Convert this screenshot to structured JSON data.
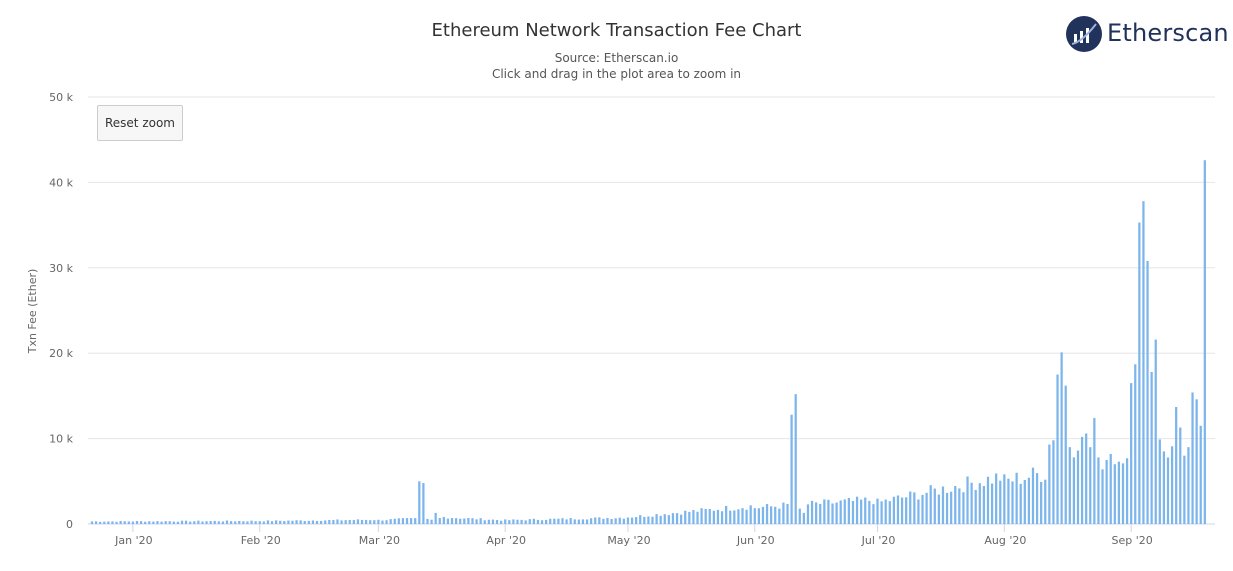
{
  "title": "Ethereum Network Transaction Fee Chart",
  "subtitle_source": "Source: Etherscan.io",
  "subtitle_hint": "Click and drag in the plot area to zoom in",
  "brand": {
    "name": "Etherscan",
    "icon": "etherscan-logo-icon"
  },
  "reset_zoom_label": "Reset zoom",
  "colors": {
    "bar": "#7cb5ec",
    "grid": "#e6e6e6",
    "brand": "#21325b"
  },
  "chart_data": {
    "type": "bar",
    "title": "Ethereum Network Transaction Fee Chart",
    "ylabel": "Txn Fee (Ether)",
    "xlabel": "",
    "ylim": [
      0,
      50000
    ],
    "yticks": [
      0,
      10000,
      20000,
      30000,
      40000,
      50000
    ],
    "ytick_labels": [
      "0",
      "10 k",
      "20 k",
      "30 k",
      "40 k",
      "50 k"
    ],
    "xtick_labels": [
      "Jan '20",
      "Feb '20",
      "Mar '20",
      "Apr '20",
      "May '20",
      "Jun '20",
      "Jul '20",
      "Aug '20",
      "Sep '20"
    ],
    "x_start": "2019-12-22",
    "x_end": "2020-09-17",
    "grid": true,
    "series": [
      {
        "segments": [
          {
            "from": "2019-12-22",
            "to": "2020-01-31",
            "start": 300,
            "end": 350
          },
          {
            "from": "2020-02-01",
            "to": "2020-02-29",
            "start": 350,
            "end": 500
          },
          {
            "from": "2020-03-01",
            "to": "2020-03-10",
            "start": 450,
            "end": 650
          },
          {
            "date": "2020-03-11",
            "value": 5000
          },
          {
            "date": "2020-03-12",
            "value": 4800
          },
          {
            "date": "2020-03-13",
            "value": 600
          },
          {
            "date": "2020-03-14",
            "value": 500
          },
          {
            "date": "2020-03-15",
            "value": 1300
          },
          {
            "date": "2020-03-16",
            "value": 700
          },
          {
            "from": "2020-03-17",
            "to": "2020-03-31",
            "start": 800,
            "end": 450
          },
          {
            "from": "2020-04-01",
            "to": "2020-04-30",
            "start": 450,
            "end": 750
          },
          {
            "from": "2020-05-01",
            "to": "2020-05-31",
            "start": 800,
            "end": 2100
          },
          {
            "from": "2020-06-01",
            "to": "2020-06-09",
            "start": 1900,
            "end": 2200
          },
          {
            "date": "2020-06-10",
            "value": 12800
          },
          {
            "date": "2020-06-11",
            "value": 15200
          },
          {
            "date": "2020-06-12",
            "value": 1800
          },
          {
            "date": "2020-06-13",
            "value": 1300
          },
          {
            "from": "2020-06-14",
            "to": "2020-06-30",
            "start": 2300,
            "end": 2800
          },
          {
            "from": "2020-07-01",
            "to": "2020-07-31",
            "start": 2500,
            "end": 5500
          },
          {
            "from": "2020-08-01",
            "to": "2020-08-11",
            "start": 5000,
            "end": 6000
          },
          {
            "date": "2020-08-12",
            "value": 9300
          },
          {
            "date": "2020-08-13",
            "value": 9800
          },
          {
            "date": "2020-08-14",
            "value": 17500
          },
          {
            "date": "2020-08-15",
            "value": 20100
          },
          {
            "date": "2020-08-16",
            "value": 16200
          },
          {
            "date": "2020-08-17",
            "value": 9000
          },
          {
            "date": "2020-08-18",
            "value": 7800
          },
          {
            "date": "2020-08-19",
            "value": 8600
          },
          {
            "date": "2020-08-20",
            "value": 10200
          },
          {
            "date": "2020-08-21",
            "value": 10600
          },
          {
            "date": "2020-08-22",
            "value": 9000
          },
          {
            "date": "2020-08-23",
            "value": 12400
          },
          {
            "date": "2020-08-24",
            "value": 7800
          },
          {
            "date": "2020-08-25",
            "value": 6400
          },
          {
            "date": "2020-08-26",
            "value": 7500
          },
          {
            "date": "2020-08-27",
            "value": 8200
          },
          {
            "date": "2020-08-28",
            "value": 7000
          },
          {
            "date": "2020-08-29",
            "value": 7300
          },
          {
            "date": "2020-08-30",
            "value": 7100
          },
          {
            "date": "2020-08-31",
            "value": 7700
          },
          {
            "date": "2020-09-01",
            "value": 16500
          },
          {
            "date": "2020-09-02",
            "value": 18700
          },
          {
            "date": "2020-09-03",
            "value": 35300
          },
          {
            "date": "2020-09-04",
            "value": 37800
          },
          {
            "date": "2020-09-05",
            "value": 30800
          },
          {
            "date": "2020-09-06",
            "value": 17800
          },
          {
            "date": "2020-09-07",
            "value": 21600
          },
          {
            "date": "2020-09-08",
            "value": 9900
          },
          {
            "date": "2020-09-09",
            "value": 8500
          },
          {
            "date": "2020-09-10",
            "value": 7800
          },
          {
            "date": "2020-09-11",
            "value": 9100
          },
          {
            "date": "2020-09-12",
            "value": 13700
          },
          {
            "date": "2020-09-13",
            "value": 11300
          },
          {
            "date": "2020-09-14",
            "value": 8000
          },
          {
            "date": "2020-09-15",
            "value": 9000
          },
          {
            "date": "2020-09-16",
            "value": 15400
          },
          {
            "date": "2020-09-17",
            "value": 14600
          },
          {
            "date": "2020-09-18",
            "value": 11500
          },
          {
            "date": "2020-09-19",
            "value": 42600
          }
        ]
      }
    ]
  }
}
